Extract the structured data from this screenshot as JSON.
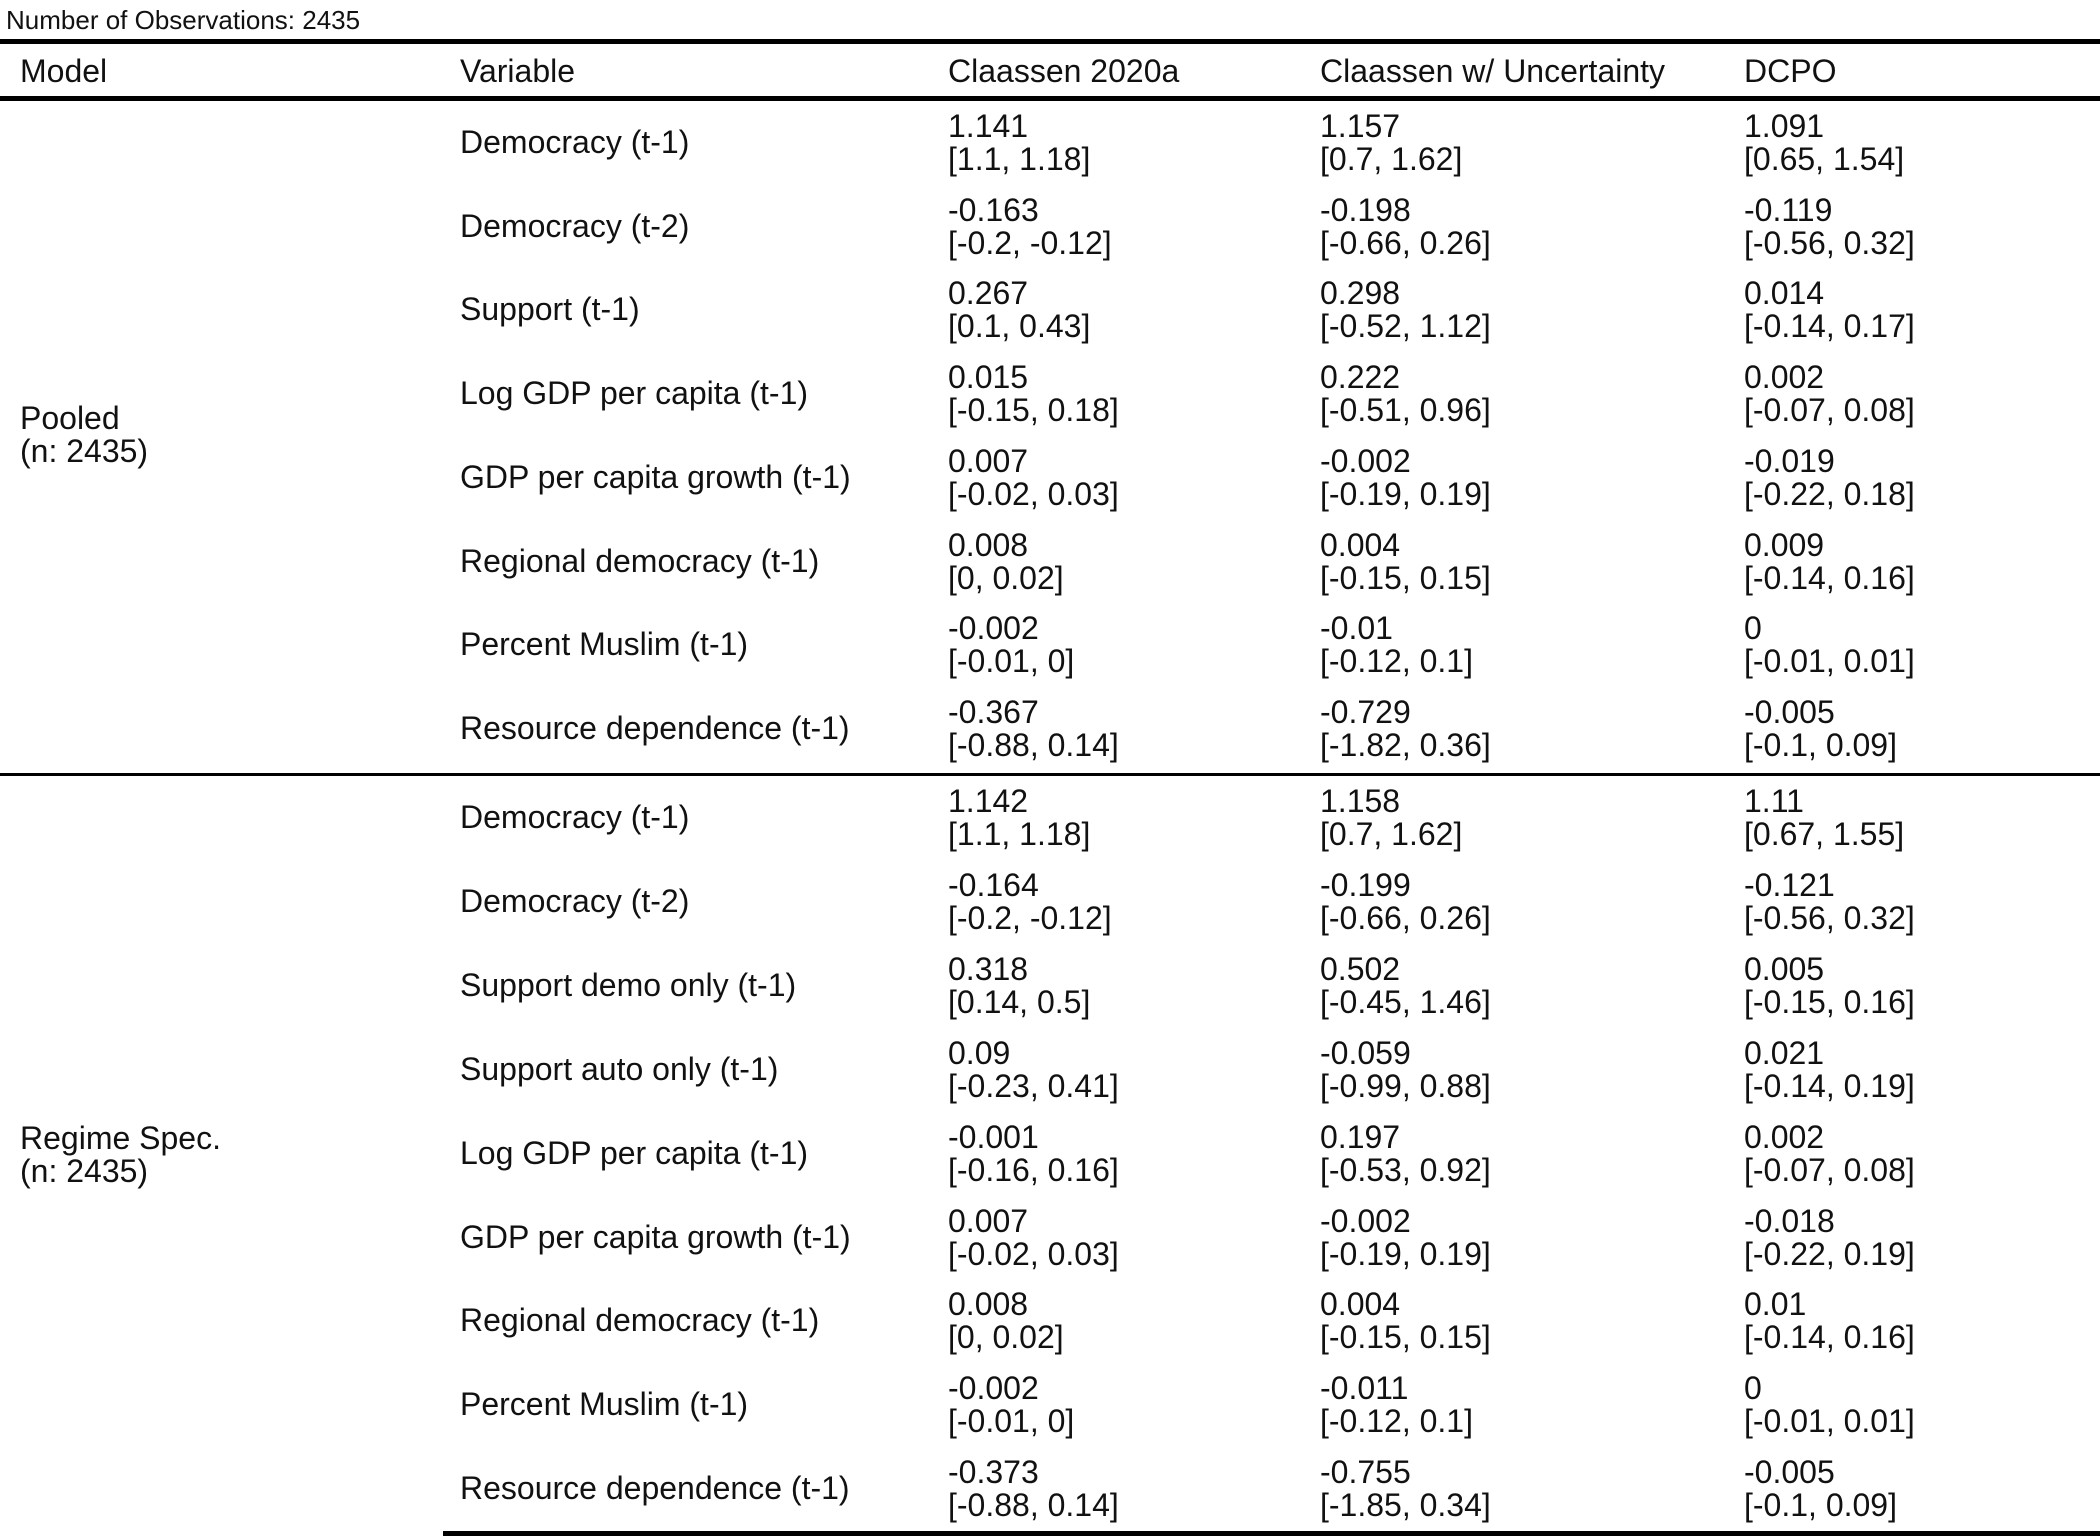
{
  "caption": "Number of Observations: 2435",
  "columns": [
    "Model",
    "Variable",
    "Claassen 2020a",
    "Claassen w/ Uncertainty",
    "DCPO"
  ],
  "groups": [
    {
      "label": "Pooled",
      "n": "(n: 2435)",
      "rows": [
        {
          "variable": "Democracy (t-1)",
          "cells": [
            {
              "est": "1.141",
              "ci": "[1.1, 1.18]"
            },
            {
              "est": "1.157",
              "ci": "[0.7, 1.62]"
            },
            {
              "est": "1.091",
              "ci": "[0.65, 1.54]"
            }
          ]
        },
        {
          "variable": "Democracy (t-2)",
          "cells": [
            {
              "est": "-0.163",
              "ci": "[-0.2, -0.12]"
            },
            {
              "est": "-0.198",
              "ci": "[-0.66, 0.26]"
            },
            {
              "est": "-0.119",
              "ci": "[-0.56, 0.32]"
            }
          ]
        },
        {
          "variable": "Support (t-1)",
          "cells": [
            {
              "est": "0.267",
              "ci": "[0.1, 0.43]"
            },
            {
              "est": "0.298",
              "ci": "[-0.52, 1.12]"
            },
            {
              "est": "0.014",
              "ci": "[-0.14, 0.17]"
            }
          ]
        },
        {
          "variable": "Log GDP per capita (t-1)",
          "cells": [
            {
              "est": "0.015",
              "ci": "[-0.15, 0.18]"
            },
            {
              "est": "0.222",
              "ci": "[-0.51, 0.96]"
            },
            {
              "est": "0.002",
              "ci": "[-0.07, 0.08]"
            }
          ]
        },
        {
          "variable": "GDP per capita growth (t-1)",
          "cells": [
            {
              "est": "0.007",
              "ci": "[-0.02, 0.03]"
            },
            {
              "est": "-0.002",
              "ci": "[-0.19, 0.19]"
            },
            {
              "est": "-0.019",
              "ci": "[-0.22, 0.18]"
            }
          ]
        },
        {
          "variable": "Regional democracy (t-1)",
          "cells": [
            {
              "est": "0.008",
              "ci": "[0, 0.02]"
            },
            {
              "est": "0.004",
              "ci": "[-0.15, 0.15]"
            },
            {
              "est": "0.009",
              "ci": "[-0.14, 0.16]"
            }
          ]
        },
        {
          "variable": "Percent Muslim (t-1)",
          "cells": [
            {
              "est": "-0.002",
              "ci": "[-0.01, 0]"
            },
            {
              "est": "-0.01",
              "ci": "[-0.12, 0.1]"
            },
            {
              "est": "0",
              "ci": "[-0.01, 0.01]"
            }
          ]
        },
        {
          "variable": "Resource dependence (t-1)",
          "cells": [
            {
              "est": "-0.367",
              "ci": "[-0.88, 0.14]"
            },
            {
              "est": "-0.729",
              "ci": "[-1.82, 0.36]"
            },
            {
              "est": "-0.005",
              "ci": "[-0.1, 0.09]"
            }
          ]
        }
      ]
    },
    {
      "label": "Regime Spec.",
      "n": "(n: 2435)",
      "rows": [
        {
          "variable": "Democracy (t-1)",
          "cells": [
            {
              "est": "1.142",
              "ci": "[1.1, 1.18]"
            },
            {
              "est": "1.158",
              "ci": "[0.7, 1.62]"
            },
            {
              "est": "1.11",
              "ci": "[0.67, 1.55]"
            }
          ]
        },
        {
          "variable": "Democracy (t-2)",
          "cells": [
            {
              "est": "-0.164",
              "ci": "[-0.2, -0.12]"
            },
            {
              "est": "-0.199",
              "ci": "[-0.66, 0.26]"
            },
            {
              "est": "-0.121",
              "ci": "[-0.56, 0.32]"
            }
          ]
        },
        {
          "variable": "Support demo only (t-1)",
          "cells": [
            {
              "est": "0.318",
              "ci": "[0.14, 0.5]"
            },
            {
              "est": "0.502",
              "ci": "[-0.45, 1.46]"
            },
            {
              "est": "0.005",
              "ci": "[-0.15, 0.16]"
            }
          ]
        },
        {
          "variable": "Support auto only (t-1)",
          "cells": [
            {
              "est": "0.09",
              "ci": "[-0.23, 0.41]"
            },
            {
              "est": "-0.059",
              "ci": "[-0.99, 0.88]"
            },
            {
              "est": "0.021",
              "ci": "[-0.14, 0.19]"
            }
          ]
        },
        {
          "variable": "Log GDP per capita (t-1)",
          "cells": [
            {
              "est": "-0.001",
              "ci": "[-0.16, 0.16]"
            },
            {
              "est": "0.197",
              "ci": "[-0.53, 0.92]"
            },
            {
              "est": "0.002",
              "ci": "[-0.07, 0.08]"
            }
          ]
        },
        {
          "variable": "GDP per capita growth (t-1)",
          "cells": [
            {
              "est": "0.007",
              "ci": "[-0.02, 0.03]"
            },
            {
              "est": "-0.002",
              "ci": "[-0.19, 0.19]"
            },
            {
              "est": "-0.018",
              "ci": "[-0.22, 0.19]"
            }
          ]
        },
        {
          "variable": "Regional democracy (t-1)",
          "cells": [
            {
              "est": "0.008",
              "ci": "[0, 0.02]"
            },
            {
              "est": "0.004",
              "ci": "[-0.15, 0.15]"
            },
            {
              "est": "0.01",
              "ci": "[-0.14, 0.16]"
            }
          ]
        },
        {
          "variable": "Percent Muslim (t-1)",
          "cells": [
            {
              "est": "-0.002",
              "ci": "[-0.01, 0]"
            },
            {
              "est": "-0.011",
              "ci": "[-0.12, 0.1]"
            },
            {
              "est": "0",
              "ci": "[-0.01, 0.01]"
            }
          ]
        },
        {
          "variable": "Resource dependence (t-1)",
          "cells": [
            {
              "est": "-0.373",
              "ci": "[-0.88, 0.14]"
            },
            {
              "est": "-0.755",
              "ci": "[-1.85, 0.34]"
            },
            {
              "est": "-0.005",
              "ci": "[-0.1, 0.09]"
            }
          ]
        }
      ]
    }
  ]
}
